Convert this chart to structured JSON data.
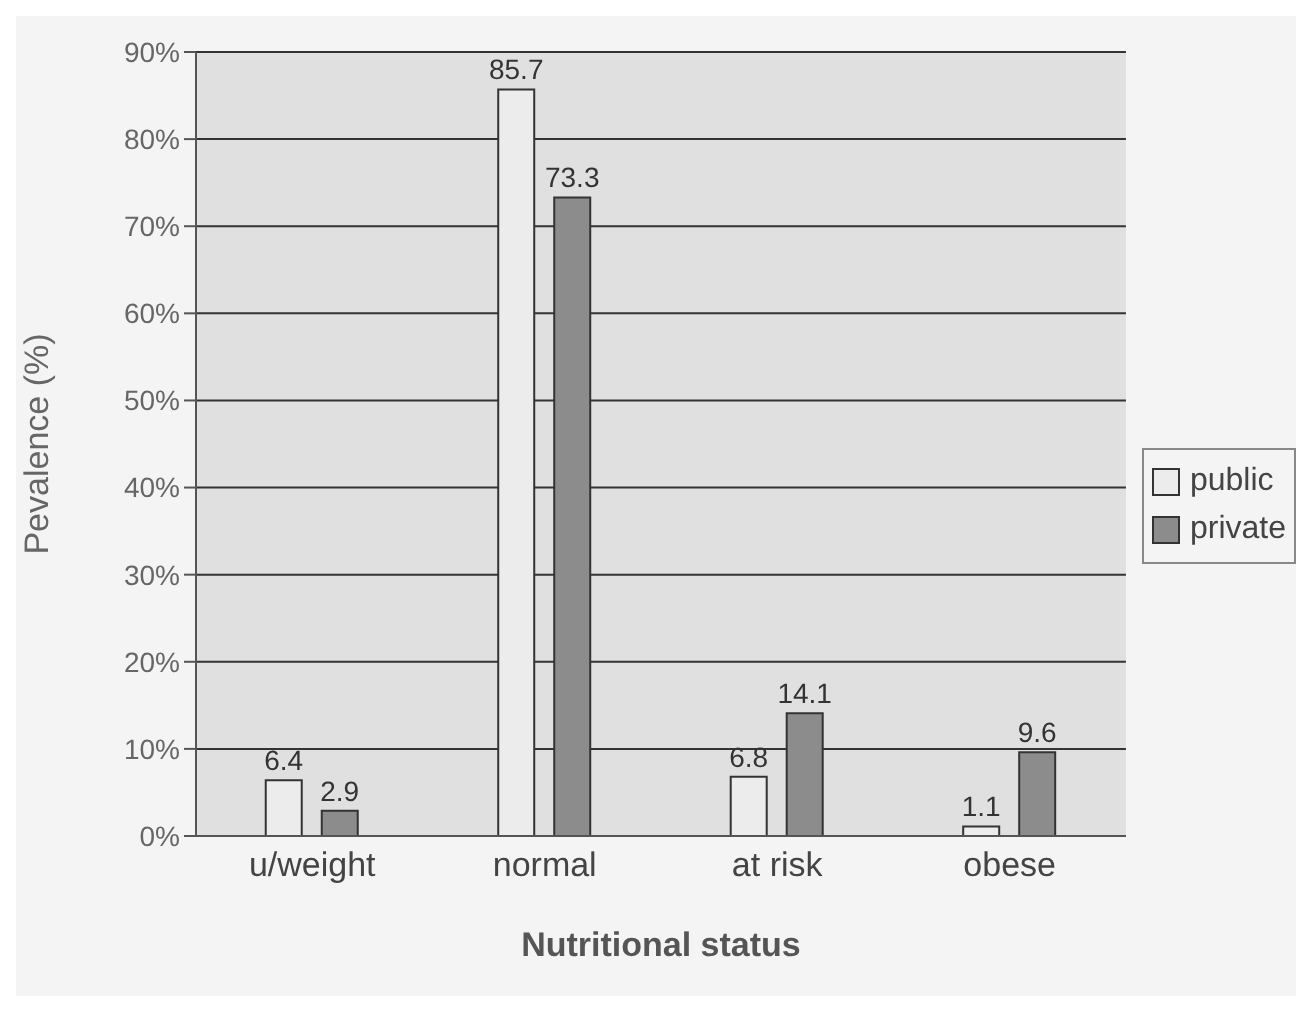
{
  "chart_data": {
    "type": "bar",
    "xlabel": "Nutritional status",
    "ylabel": "Pevalence (%)",
    "categories": [
      "u/weight",
      "normal",
      "at risk",
      "obese"
    ],
    "series": [
      {
        "name": "public",
        "color": "#ececec",
        "values": [
          6.4,
          85.7,
          6.8,
          1.1
        ]
      },
      {
        "name": "private",
        "color": "#8c8c8c",
        "values": [
          2.9,
          73.3,
          14.1,
          9.6
        ]
      }
    ],
    "ylim": [
      0,
      90
    ],
    "yticks": [
      {
        "value": 0,
        "label": "0%"
      },
      {
        "value": 10,
        "label": "10%"
      },
      {
        "value": 20,
        "label": "20%"
      },
      {
        "value": 30,
        "label": "30%"
      },
      {
        "value": 40,
        "label": "40%"
      },
      {
        "value": 50,
        "label": "50%"
      },
      {
        "value": 60,
        "label": "60%"
      },
      {
        "value": 70,
        "label": "70%"
      },
      {
        "value": 80,
        "label": "80%"
      },
      {
        "value": 90,
        "label": "90%"
      }
    ],
    "grid": "y",
    "legend": "right",
    "data_labels": true
  }
}
